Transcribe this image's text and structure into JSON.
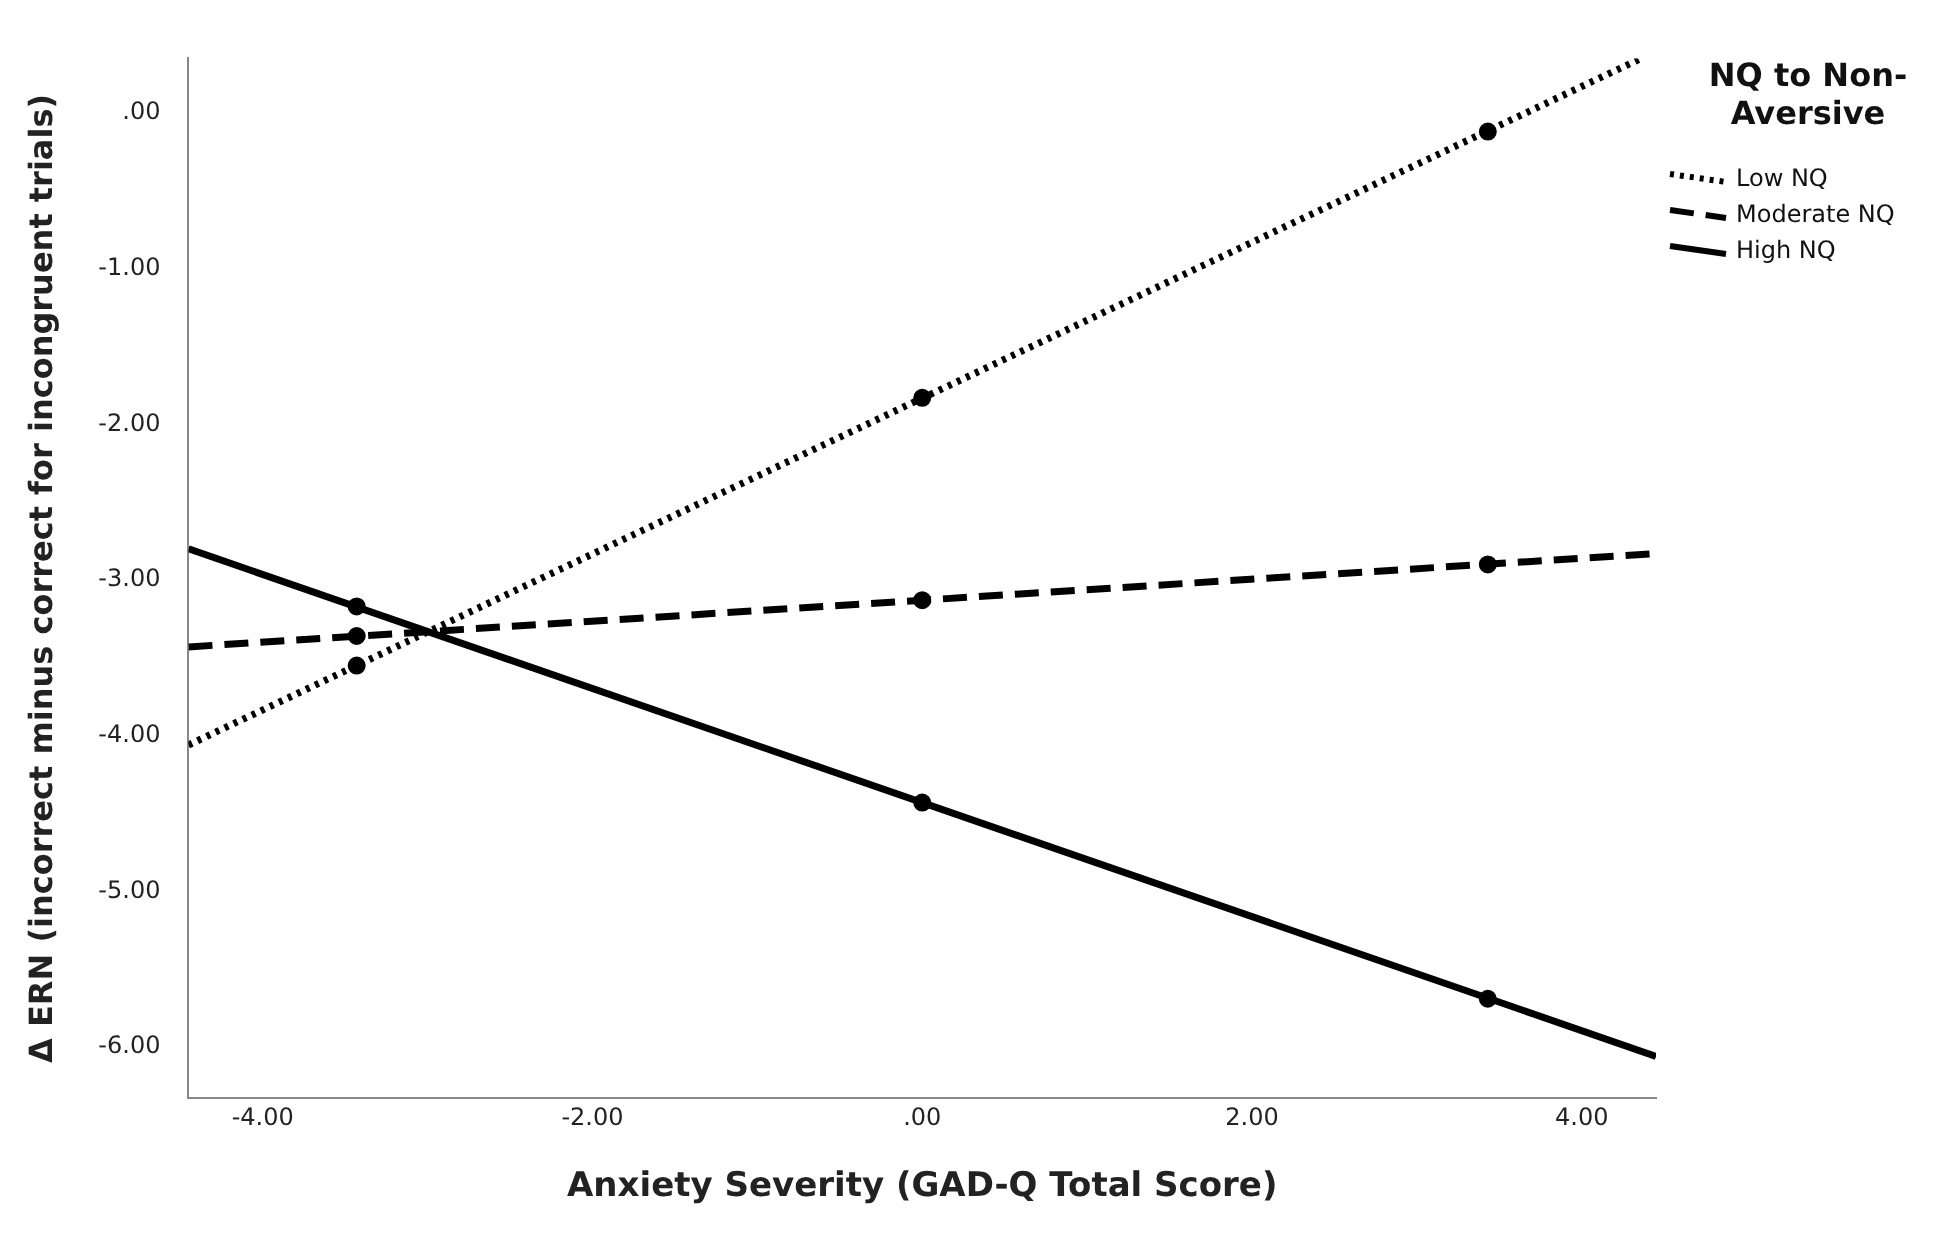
{
  "chart_data": {
    "type": "line",
    "xlabel": "Anxiety Severity (GAD-Q Total Score)",
    "ylabel": "Δ ERN (incorrect minus correct for incongruent trials)",
    "legend_title": "NQ to Non-Aversive",
    "legend": "right",
    "grid": false,
    "marker": "none",
    "xlim": [
      -4.45,
      4.45
    ],
    "ylim": [
      -6.33,
      0.35
    ],
    "xticks": [
      {
        "value": -4,
        "label": "-4.00"
      },
      {
        "value": -2,
        "label": "-2.00"
      },
      {
        "value": 0,
        "label": ".00"
      },
      {
        "value": 2,
        "label": "2.00"
      },
      {
        "value": 4,
        "label": "4.00"
      }
    ],
    "yticks": [
      {
        "value": 0,
        "label": ".00"
      },
      {
        "value": -1,
        "label": "-1.00"
      },
      {
        "value": -2,
        "label": "-2.00"
      },
      {
        "value": -3,
        "label": "-3.00"
      },
      {
        "value": -4,
        "label": "-4.00"
      },
      {
        "value": -5,
        "label": "-5.00"
      },
      {
        "value": -6,
        "label": "-6.00"
      }
    ],
    "series": [
      {
        "name": "Low NQ",
        "color": "#000000",
        "line_style": "dotted",
        "x": [
          -4.45,
          4.36
        ],
        "values": [
          -4.06,
          0.35
        ]
      },
      {
        "name": "Moderate NQ",
        "color": "#000000",
        "line_style": "dashed",
        "x": [
          -4.45,
          4.45
        ],
        "values": [
          -3.43,
          -2.83
        ]
      },
      {
        "name": "High NQ",
        "color": "#000000",
        "line_style": "solid",
        "x": [
          -4.45,
          4.45
        ],
        "values": [
          -2.8,
          -6.06
        ]
      },
      {
        "type": "scatter",
        "marker": "circle",
        "color": "#000000",
        "x": [
          -3.43,
          0,
          3.43
        ],
        "values": [
          -3.55,
          -1.83,
          -0.12
        ]
      },
      {
        "type": "scatter",
        "marker": "circle",
        "color": "#000000",
        "x": [
          -3.43,
          0,
          3.43
        ],
        "values": [
          -3.36,
          -3.13,
          -2.9
        ]
      },
      {
        "type": "scatter",
        "marker": "circle",
        "color": "#000000",
        "x": [
          -3.43,
          0,
          3.43
        ],
        "values": [
          -3.17,
          -4.43,
          -5.69
        ]
      }
    ]
  }
}
